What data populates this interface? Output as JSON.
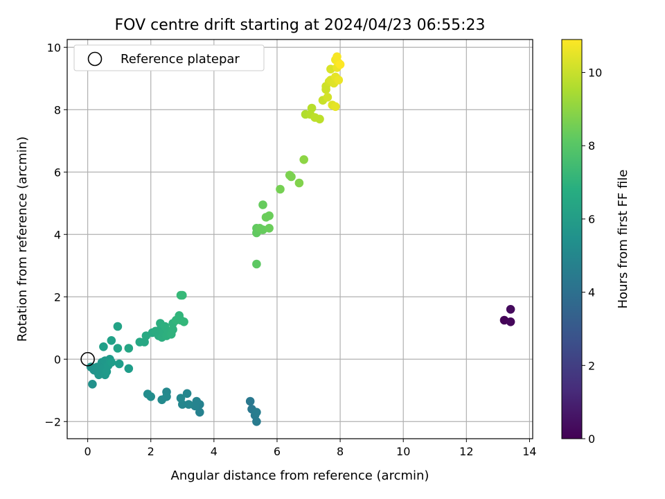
{
  "chart_data": {
    "type": "scatter",
    "title": "FOV centre drift starting at 2024/04/23 06:55:23",
    "xlabel": "Angular distance from reference (arcmin)",
    "ylabel": "Rotation from reference (arcmin)",
    "colorbar_label": "Hours from first FF file",
    "colormap": "viridis",
    "xlim": [
      -0.65,
      14.1
    ],
    "ylim": [
      -2.55,
      10.25
    ],
    "clim": [
      0,
      10.9
    ],
    "xticks": [
      0,
      2,
      4,
      6,
      8,
      10,
      12,
      14
    ],
    "yticks": [
      -2,
      0,
      2,
      4,
      6,
      8,
      10
    ],
    "cticks": [
      0,
      2,
      4,
      6,
      8,
      10
    ],
    "x_tick_labels": [
      "0",
      "2",
      "4",
      "6",
      "8",
      "10",
      "12",
      "14"
    ],
    "y_tick_labels": [
      "−2",
      "0",
      "2",
      "4",
      "6",
      "8",
      "10"
    ],
    "c_tick_labels": [
      "0",
      "2",
      "4",
      "6",
      "8",
      "10"
    ],
    "grid": true,
    "legend_position": "top-left",
    "reference": {
      "label": "Reference platepar",
      "x": 0,
      "y": 0
    },
    "points": [
      [
        13.2,
        1.25,
        0.1
      ],
      [
        13.4,
        1.2,
        0.2
      ],
      [
        13.4,
        1.6,
        0.3
      ],
      [
        5.15,
        -1.35,
        4.4
      ],
      [
        5.2,
        -1.6,
        4.4
      ],
      [
        5.3,
        -1.8,
        4.5
      ],
      [
        5.35,
        -2.0,
        4.5
      ],
      [
        5.35,
        -1.7,
        4.6
      ],
      [
        3.55,
        -1.7,
        4.8
      ],
      [
        3.55,
        -1.45,
        4.8
      ],
      [
        3.45,
        -1.35,
        4.9
      ],
      [
        3.4,
        -1.5,
        4.9
      ],
      [
        3.2,
        -1.45,
        5.0
      ],
      [
        3.15,
        -1.1,
        5.0
      ],
      [
        3.0,
        -1.45,
        5.0
      ],
      [
        2.95,
        -1.25,
        5.1
      ],
      [
        2.5,
        -1.05,
        5.1
      ],
      [
        2.5,
        -1.2,
        5.2
      ],
      [
        2.35,
        -1.3,
        5.2
      ],
      [
        2.0,
        -1.2,
        5.3
      ],
      [
        1.9,
        -1.12,
        5.3
      ],
      [
        0.15,
        -0.8,
        5.5
      ],
      [
        0.1,
        -0.25,
        5.6
      ],
      [
        0.2,
        -0.35,
        5.6
      ],
      [
        0.3,
        -0.4,
        5.6
      ],
      [
        0.3,
        -0.25,
        5.7
      ],
      [
        0.35,
        -0.5,
        5.7
      ],
      [
        0.45,
        -0.1,
        5.7
      ],
      [
        0.5,
        -0.3,
        5.8
      ],
      [
        0.55,
        -0.5,
        5.8
      ],
      [
        0.55,
        -0.05,
        5.8
      ],
      [
        0.6,
        -0.4,
        5.9
      ],
      [
        0.65,
        -0.2,
        5.9
      ],
      [
        0.7,
        0.0,
        5.9
      ],
      [
        0.75,
        -0.1,
        6.0
      ],
      [
        1.0,
        -0.15,
        6.0
      ],
      [
        1.3,
        -0.3,
        6.0
      ],
      [
        0.5,
        0.4,
        6.1
      ],
      [
        0.75,
        0.6,
        6.2
      ],
      [
        0.95,
        0.35,
        6.3
      ],
      [
        0.95,
        1.05,
        6.3
      ],
      [
        1.3,
        0.35,
        6.4
      ],
      [
        1.65,
        0.55,
        6.5
      ],
      [
        1.8,
        0.55,
        6.5
      ],
      [
        1.85,
        0.75,
        6.6
      ],
      [
        2.05,
        0.85,
        6.6
      ],
      [
        2.15,
        0.9,
        6.7
      ],
      [
        2.25,
        0.75,
        6.7
      ],
      [
        2.3,
        0.95,
        6.7
      ],
      [
        2.3,
        1.15,
        6.8
      ],
      [
        2.35,
        0.7,
        6.8
      ],
      [
        2.4,
        0.85,
        6.8
      ],
      [
        2.45,
        1.05,
        6.9
      ],
      [
        2.5,
        0.75,
        6.9
      ],
      [
        2.55,
        0.9,
        6.9
      ],
      [
        2.65,
        0.8,
        7.0
      ],
      [
        2.7,
        0.95,
        7.0
      ],
      [
        2.7,
        1.15,
        7.0
      ],
      [
        2.8,
        1.25,
        7.1
      ],
      [
        2.9,
        1.4,
        7.1
      ],
      [
        2.95,
        1.25,
        7.1
      ],
      [
        3.05,
        1.2,
        7.2
      ],
      [
        3.0,
        2.05,
        7.3
      ],
      [
        2.95,
        2.05,
        7.3
      ],
      [
        5.35,
        3.05,
        8.1
      ],
      [
        5.35,
        4.05,
        8.2
      ],
      [
        5.35,
        4.2,
        8.2
      ],
      [
        5.45,
        4.2,
        8.3
      ],
      [
        5.55,
        4.15,
        8.3
      ],
      [
        5.55,
        4.95,
        8.3
      ],
      [
        5.65,
        4.55,
        8.4
      ],
      [
        5.75,
        4.6,
        8.4
      ],
      [
        5.75,
        4.2,
        8.4
      ],
      [
        6.1,
        5.45,
        8.6
      ],
      [
        6.4,
        5.9,
        8.7
      ],
      [
        6.45,
        5.85,
        8.7
      ],
      [
        6.7,
        5.65,
        8.8
      ],
      [
        6.85,
        6.4,
        9.0
      ],
      [
        6.9,
        7.85,
        9.6
      ],
      [
        7.05,
        7.85,
        9.7
      ],
      [
        7.1,
        8.05,
        9.7
      ],
      [
        7.2,
        7.75,
        9.8
      ],
      [
        7.35,
        7.7,
        9.8
      ],
      [
        7.45,
        8.3,
        10.0
      ],
      [
        7.55,
        8.65,
        10.1
      ],
      [
        7.55,
        8.75,
        10.1
      ],
      [
        7.6,
        8.4,
        10.2
      ],
      [
        7.65,
        8.9,
        10.2
      ],
      [
        7.7,
        9.3,
        10.3
      ],
      [
        7.7,
        8.95,
        10.3
      ],
      [
        7.75,
        8.15,
        10.4
      ],
      [
        7.8,
        8.85,
        10.4
      ],
      [
        7.85,
        9.05,
        10.5
      ],
      [
        7.85,
        8.1,
        10.5
      ],
      [
        7.9,
        9.35,
        10.6
      ],
      [
        7.95,
        8.95,
        10.6
      ],
      [
        7.85,
        9.6,
        10.7
      ],
      [
        7.9,
        9.7,
        10.8
      ],
      [
        7.95,
        9.5,
        10.8
      ],
      [
        8.0,
        9.45,
        10.9
      ]
    ]
  }
}
